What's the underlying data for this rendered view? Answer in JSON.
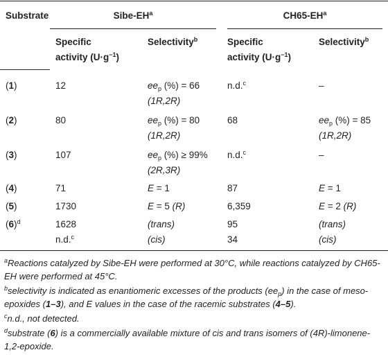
{
  "table": {
    "header": {
      "substrate": "Substrate",
      "groups": [
        {
          "name": "Sibe-EH",
          "sup": "a"
        },
        {
          "name": "CH65-EH",
          "sup": "a"
        }
      ],
      "activity": {
        "line1": "Specific",
        "line2": "activity (U·g",
        "sup": "−1",
        "close": ")"
      },
      "selectivity": {
        "text": "Selectivity",
        "sup": "b"
      }
    },
    "rows": [
      {
        "substrate": {
          "pre": "(",
          "num": "1",
          "post": ")"
        },
        "sibe_activity": "12",
        "sibe_selectivity": {
          "ee": "ee",
          "sub": "p",
          "expr": " (%) = 66",
          "config": "(1R,2R)"
        },
        "ch65_activity": {
          "text": "n.d.",
          "sup": "c"
        },
        "ch65_selectivity": "–"
      },
      {
        "substrate": {
          "pre": "(",
          "num": "2",
          "post": ")"
        },
        "sibe_activity": "80",
        "sibe_selectivity": {
          "ee": "ee",
          "sub": "p",
          "expr": " (%) = 80",
          "config": "(1R,2R)"
        },
        "ch65_activity": "68",
        "ch65_selectivity": {
          "ee": "ee",
          "sub": "p",
          "expr": " (%) = 85",
          "config": "(1R,2R)"
        }
      },
      {
        "substrate": {
          "pre": "(",
          "num": "3",
          "post": ")"
        },
        "sibe_activity": "107",
        "sibe_selectivity": {
          "ee": "ee",
          "sub": "p",
          "expr": " (%) ≥ 99%",
          "config": "(2R,3R)"
        },
        "ch65_activity": {
          "text": "n.d.",
          "sup": "c"
        },
        "ch65_selectivity": "–"
      },
      {
        "substrate": {
          "pre": "(",
          "num": "4",
          "post": ")"
        },
        "sibe_activity": "71",
        "sibe_selectivity": {
          "E": "E",
          "expr": " = 1"
        },
        "ch65_activity": "87",
        "ch65_selectivity": {
          "E": "E",
          "expr": " = 1"
        }
      },
      {
        "substrate": {
          "pre": "(",
          "num": "5",
          "post": ")"
        },
        "sibe_activity": "1730",
        "sibe_selectivity": {
          "E": "E",
          "expr": " = 5 ",
          "config": "(R)"
        },
        "ch65_activity": "6,359",
        "ch65_selectivity": {
          "E": "E",
          "expr": " = 2 ",
          "config": "(R)"
        }
      },
      {
        "substrate": {
          "pre": "(",
          "num": "6",
          "post": ")",
          "sup": "d"
        },
        "sibe_activity": {
          "trans": "1628",
          "cis": {
            "text": "n.d.",
            "sup": "c"
          }
        },
        "sibe_selectivity": {
          "trans": "(trans)",
          "cis": "(cis)"
        },
        "ch65_activity": {
          "trans": "95",
          "cis": "34"
        },
        "ch65_selectivity": {
          "trans": "(trans)",
          "cis": "(cis)"
        }
      }
    ],
    "footnotes": [
      {
        "mark": "a",
        "parts": [
          "Reactions catalyzed by Sibe-EH were performed at 30°C, while reactions catalyzed by CH65-EH were performed at 45°C."
        ]
      },
      {
        "mark": "b",
        "parts": [
          "selectivity is indicated as enantiomeric excesses of the products (ee",
          "p",
          ") in the case of meso-epoxides (",
          "1–3",
          "), and E values in the case of the racemic substrates (",
          "4–5",
          ")."
        ]
      },
      {
        "mark": "c",
        "parts": [
          "n.d., not detected."
        ]
      },
      {
        "mark": "d",
        "parts": [
          "substrate (",
          "6",
          ") is a commercially available mixture of cis and trans isomers of (4R)-limonene-1,2-epoxide."
        ]
      }
    ]
  }
}
